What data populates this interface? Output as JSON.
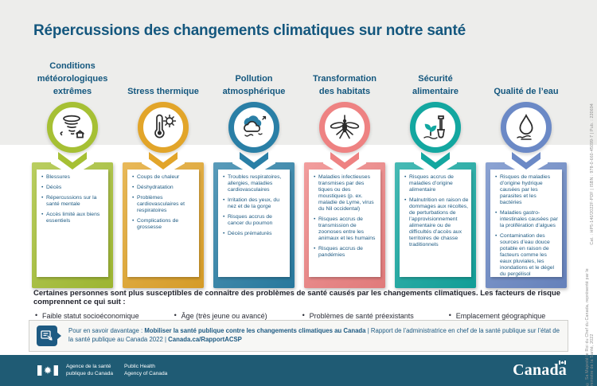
{
  "title": "Répercussions des changements climatiques sur notre santé",
  "columns": [
    {
      "header": "Conditions météorologiques extrêmes",
      "icon": "tornado-icon",
      "color": "#a6c034",
      "items": [
        "Blessures",
        "Décès",
        "Répercussions sur la santé mentale",
        "Accès limité aux biens essentiels"
      ]
    },
    {
      "header": "Stress thermique",
      "icon": "thermometer-sun-icon",
      "color": "#e2a52a",
      "items": [
        "Coups de chaleur",
        "Déshydratation",
        "Problèmes cardiovasculaires et respiratoires",
        "Complications de grossesse"
      ]
    },
    {
      "header": "Pollution atmosphérique",
      "icon": "cloud-wind-icon",
      "color": "#2a7fa6",
      "items": [
        "Troubles respiratoires, allergies, maladies cardiovasculaires",
        "Irritation des yeux, du nez et de la gorge",
        "Risques accrus de cancer du poumon",
        "Décès prématurés"
      ]
    },
    {
      "header": "Transformation des habitats",
      "icon": "mosquito-icon",
      "color": "#ee8282",
      "items": [
        "Maladies infectieuses transmises par des tiques ou des moustiques (p. ex. maladie de Lyme, virus du Nil occidental)",
        "Risques accrus de transmission de zoonoses entre les animaux et les humains",
        "Risques accrus de pandémies"
      ]
    },
    {
      "header": "Sécurité alimentaire",
      "icon": "sprout-shovel-icon",
      "color": "#13a7a0",
      "items": [
        "Risques accrus de maladies d’origine alimentaire",
        "Malnutrition en raison de dommages aux récoltes, de perturbations de l’approvisionnement alimentaire ou de difficultés d’accès aux territoires de chasse traditionnels"
      ]
    },
    {
      "header": "Qualité de l’eau",
      "icon": "water-droplet-icon",
      "color": "#6b89c6",
      "items": [
        "Risques de maladies d’origine hydrique causées par les parasites et les bactéries",
        "Maladies gastro-intestinales causées par la prolifération d’algues",
        "Contamination des sources d’eau douce potable en raison de facteurs comme les eaux pluviales, les inondations et le dégel du pergélisol"
      ]
    }
  ],
  "susceptibility": {
    "intro": "Certaines personnes sont plus susceptibles de connaître des problèmes de santé causés par les changements climatiques. Les facteurs de risque comprennent ce qui suit :",
    "factors": [
      "Faible statut socioéconomique",
      "Âge (très jeune ou avancé)",
      "Problèmes de santé préexistants",
      "Emplacement géographique"
    ]
  },
  "more_info": {
    "prefix": "Pour en savoir davantage : ",
    "bold_title": "Mobiliser la santé publique contre les changements climatiques au Canada",
    "separator": " | ",
    "report": "Rapport de l’administratrice en chef de la santé publique sur l’état de la santé publique au Canada 2022 | ",
    "link": "Canada.ca/RapportACSP"
  },
  "footer": {
    "agency_fr_line1": "Agence de la santé",
    "agency_fr_line2": "publique du Canada",
    "agency_en_line1": "Public Health",
    "agency_en_line2": "Agency of Canada",
    "wordmark": "Canada"
  },
  "side_notes": {
    "catalog": "Cat. : HP5-140/2022F-PDF | ISBN : 978-0-660-45099-7 | Pub. : 220694",
    "copyright": "© Sa Majesté le Roi du Chef du Canada, représenté par le ministre de la Santé, 2022"
  },
  "colors": {
    "accent_text": "#14577e",
    "bottom_bar": "#1f5b74"
  }
}
